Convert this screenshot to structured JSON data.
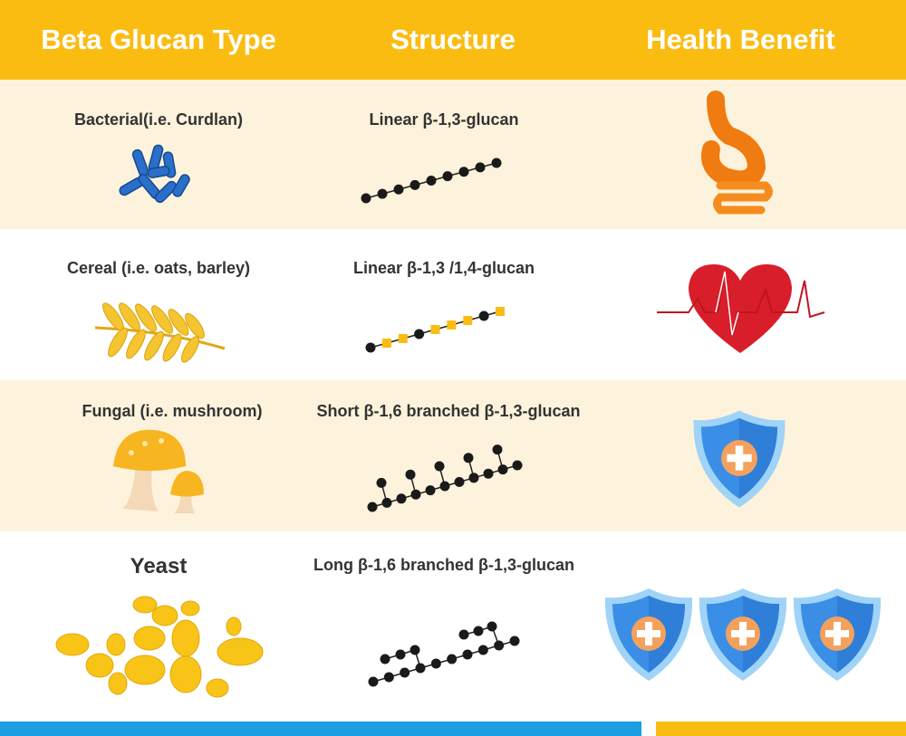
{
  "header": {
    "col1": "Beta Glucan Type",
    "col2": "Structure",
    "col3": "Health Benefit"
  },
  "rows": [
    {
      "type": "Bacterial(i.e. Curdlan)",
      "structure": "Linear β-1,3-glucan",
      "type_icon": "bacteria-icon",
      "benefit_icon": "digestive-system-icon"
    },
    {
      "type": "Cereal (i.e. oats, barley)",
      "structure": "Linear β-1,3 /1,4-glucan",
      "type_icon": "wheat-icon",
      "benefit_icon": "heart-ecg-icon"
    },
    {
      "type": "Fungal (i.e. mushroom)",
      "structure": "Short β-1,6 branched β-1,3-glucan",
      "type_icon": "mushroom-icon",
      "benefit_icon": "shield-cross-icon"
    },
    {
      "type": "Yeast",
      "structure": "Long β-1,6 branched β-1,3-glucan",
      "type_icon": "yeast-icon",
      "benefit_icon": "three-shields-icon"
    }
  ],
  "colors": {
    "header": "#fbbc12",
    "row_alt": "#fdf3dc",
    "bar_blue": "#1b9ee2",
    "bar_yellow": "#fbbc12",
    "node": "#1a1a1a",
    "square_node": "#fbbc12"
  }
}
